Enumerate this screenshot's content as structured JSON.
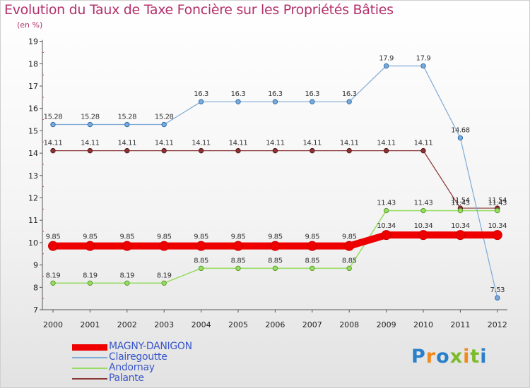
{
  "chart_data": {
    "type": "line",
    "title": "Evolution du Taux de Taxe Foncière sur les Propriétés Bâties",
    "subtitle": "(en %)",
    "xlabel": "",
    "ylabel": "",
    "ylim": [
      7,
      19
    ],
    "yticks": [
      "7",
      "8",
      "9",
      "10",
      "11",
      "12",
      "13",
      "14",
      "15",
      "16",
      "17",
      "18",
      "19"
    ],
    "categories": [
      "2000",
      "2001",
      "2002",
      "2003",
      "2004",
      "2005",
      "2006",
      "2007",
      "2008",
      "2009",
      "2010",
      "2011",
      "2012"
    ],
    "series": [
      {
        "name": "MAGNY-DANIGON",
        "color": "#ee0000",
        "values": [
          9.85,
          9.85,
          9.85,
          9.85,
          9.85,
          9.85,
          9.85,
          9.85,
          9.85,
          10.34,
          10.34,
          10.34,
          10.34
        ],
        "labels": [
          "9.85",
          "9.85",
          "9.85",
          "9.85",
          "9.85",
          "9.85",
          "9.85",
          "9.85",
          "9.85",
          "10.34",
          "10.34",
          "10.34",
          "10.34"
        ]
      },
      {
        "name": "Clairegoutte",
        "color": "#7fa9d6",
        "values": [
          15.28,
          15.28,
          15.28,
          15.28,
          16.3,
          16.3,
          16.3,
          16.3,
          16.3,
          17.9,
          17.9,
          14.68,
          7.53
        ],
        "labels": [
          "15.28",
          "15.28",
          "15.28",
          "15.28",
          "16.3",
          "16.3",
          "16.3",
          "16.3",
          "16.3",
          "17.9",
          "17.9",
          "14.68",
          "7.53"
        ]
      },
      {
        "name": "Andornay",
        "color": "#99dd66",
        "values": [
          8.19,
          8.19,
          8.19,
          8.19,
          8.85,
          8.85,
          8.85,
          8.85,
          8.85,
          11.43,
          11.43,
          11.43,
          11.43
        ],
        "labels": [
          "8.19",
          "8.19",
          "8.19",
          "8.19",
          "8.85",
          "8.85",
          "8.85",
          "8.85",
          "8.85",
          "11.43",
          "11.43",
          "11.43",
          "11.43"
        ]
      },
      {
        "name": "Palante",
        "color": "#8a3535",
        "values": [
          14.11,
          14.11,
          14.11,
          14.11,
          14.11,
          14.11,
          14.11,
          14.11,
          14.11,
          14.11,
          14.11,
          11.54,
          11.54
        ],
        "labels": [
          "14.11",
          "14.11",
          "14.11",
          "14.11",
          "14.11",
          "14.11",
          "14.11",
          "14.11",
          "14.11",
          "14.11",
          "14.11",
          "11.54",
          "11.54"
        ]
      }
    ]
  }
}
